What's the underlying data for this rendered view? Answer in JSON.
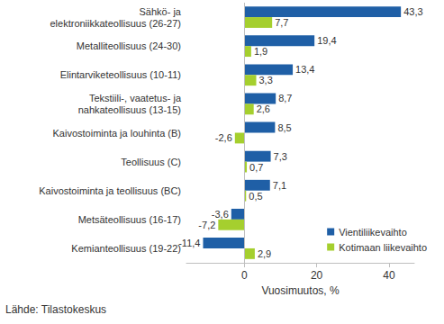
{
  "chart_data": {
    "type": "bar",
    "orientation": "horizontal",
    "categories": [
      "Sähkö- ja\nelektroniikkateollisuus (26-27)",
      "Metalliteollisuus (24-30)",
      "Elintarviketeollisuus (10-11)",
      "Tekstiili-, vaatetus- ja\nnahkateollisuus (13-15)",
      "Kaivostoiminta ja louhinta (B)",
      "Teollisuus (C)",
      "Kaivostoiminta ja teollisuus (BC)",
      "Metsäteollisuus (16-17)",
      "Kemianteollisuus (19-22)"
    ],
    "series": [
      {
        "name": "Vientiliikevaihto",
        "color": "#1f5fa6",
        "values": [
          43.3,
          19.4,
          13.4,
          8.7,
          8.5,
          7.3,
          7.1,
          -3.6,
          -11.4
        ],
        "value_labels": [
          "43,3",
          "19,4",
          "13,4",
          "8,7",
          "8,5",
          "7,3",
          "7,1",
          "-3,6",
          "-11,4"
        ]
      },
      {
        "name": "Kotimaan liikevaihto",
        "color": "#a5cf2e",
        "values": [
          7.7,
          1.9,
          3.3,
          2.6,
          -2.6,
          0.7,
          0.5,
          -7.2,
          2.9
        ],
        "value_labels": [
          "7,7",
          "1,9",
          "3,3",
          "2,6",
          "-2,6",
          "0,7",
          "0,5",
          "-7,2",
          "2,9"
        ]
      }
    ],
    "xlabel": "Vuosimuutos, %",
    "xlim": [
      -16,
      47
    ],
    "xticks": [
      0,
      20,
      40
    ],
    "grid": false,
    "legend": "lower right",
    "data_labels": true,
    "source": "Lähde: Tilastokeskus"
  }
}
